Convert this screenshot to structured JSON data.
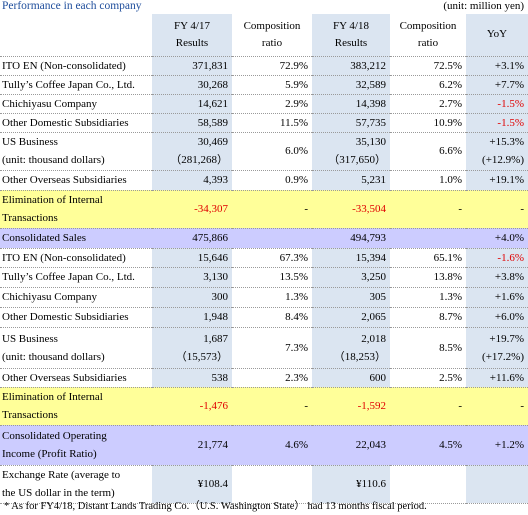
{
  "title": "Performance in each company",
  "unit": "(unit: million yen)",
  "table": {
    "header": [
      [
        "FY 4/17",
        "Results"
      ],
      [
        "Composition",
        "ratio"
      ],
      [
        "FY 4/18",
        "Results"
      ],
      [
        "Composition",
        "ratio"
      ],
      [
        "YoY"
      ]
    ],
    "header_fill": "#dbe5f1",
    "negative_color": "#e00000",
    "rows": [
      {
        "label": [
          "ITO EN (Non-consolidated)"
        ],
        "cells": [
          "371,831",
          "72.9%",
          "383,212",
          "72.5%",
          "+3.1%"
        ]
      },
      {
        "label": [
          "Tully’s Coffee Japan Co., Ltd."
        ],
        "cells": [
          "30,268",
          "5.9%",
          "32,589",
          "6.2%",
          "+7.7%"
        ]
      },
      {
        "label": [
          "Chichiyasu Company"
        ],
        "cells": [
          "14,621",
          "2.9%",
          "14,398",
          "2.7%",
          "-1.5%"
        ]
      },
      {
        "label": [
          "Other Domestic Subsidiaries"
        ],
        "cells": [
          "58,589",
          "11.5%",
          "57,735",
          "10.9%",
          "-1.5%"
        ]
      },
      {
        "label": [
          "US Business",
          "(unit: thousand dollars)"
        ],
        "cells": [
          [
            "30,469",
            "（281,268）"
          ],
          "6.0%",
          [
            "35,130",
            "（317,650）"
          ],
          "6.6%",
          [
            "+15.3%",
            "(+12.9%)"
          ]
        ]
      },
      {
        "label": [
          "Other Overseas Subsidiaries"
        ],
        "cells": [
          "4,393",
          "0.9%",
          "5,231",
          "1.0%",
          "+19.1%"
        ]
      },
      {
        "label": [
          "Elimination of Internal",
          "Transactions"
        ],
        "fill": "#ffff99",
        "cells": [
          "-34,307",
          "-",
          "-33,504",
          "-",
          "-"
        ]
      },
      {
        "label": [
          "Consolidated Sales"
        ],
        "fill": "#ccccff",
        "cells": [
          "475,866",
          null,
          "494,793",
          null,
          "+4.0%"
        ]
      },
      {
        "label": [
          "ITO EN (Non-consolidated)"
        ],
        "cells": [
          "15,646",
          "67.3%",
          "15,394",
          "65.1%",
          "-1.6%"
        ]
      },
      {
        "label": [
          "Tully’s Coffee Japan Co., Ltd."
        ],
        "cells": [
          "3,130",
          "13.5%",
          "3,250",
          "13.8%",
          "+3.8%"
        ]
      },
      {
        "label": [
          "Chichiyasu Company"
        ],
        "cells": [
          "300",
          "1.3%",
          "305",
          "1.3%",
          "+1.6%"
        ]
      },
      {
        "label": [
          "Other Domestic Subsidiaries"
        ],
        "cells": [
          "1,948",
          "8.4%",
          "2,065",
          "8.7%",
          "+6.0%"
        ]
      },
      {
        "label": [
          "US Business",
          "(unit: thousand dollars)"
        ],
        "cells": [
          [
            "1,687",
            "（15,573）"
          ],
          "7.3%",
          [
            "2,018",
            "（18,253）"
          ],
          "8.5%",
          [
            "+19.7%",
            "(+17.2%)"
          ]
        ]
      },
      {
        "label": [
          "Other Overseas Subsidiaries"
        ],
        "cells": [
          "538",
          "2.3%",
          "600",
          "2.5%",
          "+11.6%"
        ]
      },
      {
        "label": [
          "Elimination of Internal",
          "Transactions"
        ],
        "fill": "#ffff99",
        "cells": [
          "-1,476",
          "-",
          "-1,592",
          "-",
          "-"
        ]
      },
      {
        "label": [
          "Consolidated Operating",
          "Income (Profit Ratio)"
        ],
        "fill": "#ccccff",
        "cells": [
          "21,774",
          "4.6%",
          "22,043",
          "4.5%",
          "+1.2%"
        ]
      },
      {
        "label": [
          "Exchange Rate (average to",
          "the US dollar in the term)"
        ],
        "cells": [
          "¥108.4",
          null,
          "¥110.6",
          null,
          null
        ]
      }
    ]
  },
  "footnote": "*   As for FY4/18, Distant Lands Trading Co.（U.S. Washington State） had 13 months fiscal period."
}
